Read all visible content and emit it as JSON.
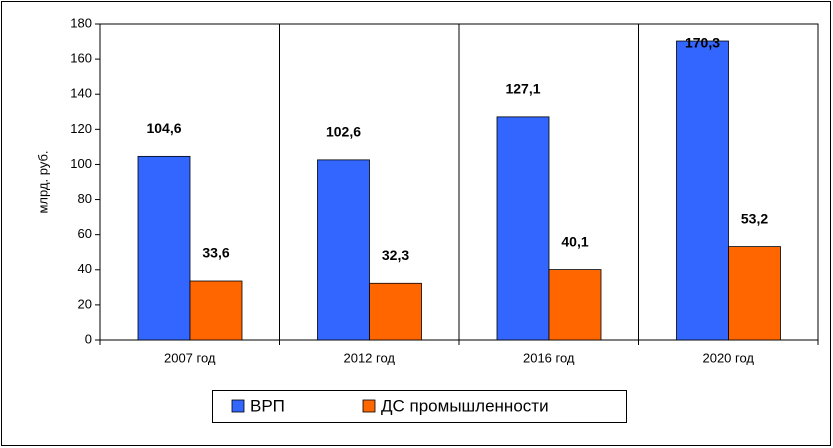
{
  "chart_data": {
    "type": "bar",
    "y_label": "млрд. руб.",
    "categories": [
      "2007 год",
      "2012 год",
      "2016 год",
      "2020 год"
    ],
    "series": [
      {
        "name": "ВРП",
        "color": "#3366ff",
        "values": [
          104.6,
          102.6,
          127.1,
          170.3
        ],
        "value_labels": [
          "104,6",
          "102,6",
          "127,1",
          "170,3"
        ]
      },
      {
        "name": "ДС промышленности",
        "color": "#ff6600",
        "values": [
          33.6,
          32.3,
          40.1,
          53.2
        ],
        "value_labels": [
          "33,6",
          "32,3",
          "40,1",
          "53,2"
        ]
      }
    ],
    "ylim": [
      0,
      180
    ],
    "yticks": [
      0,
      20,
      40,
      60,
      80,
      100,
      120,
      140,
      160,
      180
    ]
  }
}
